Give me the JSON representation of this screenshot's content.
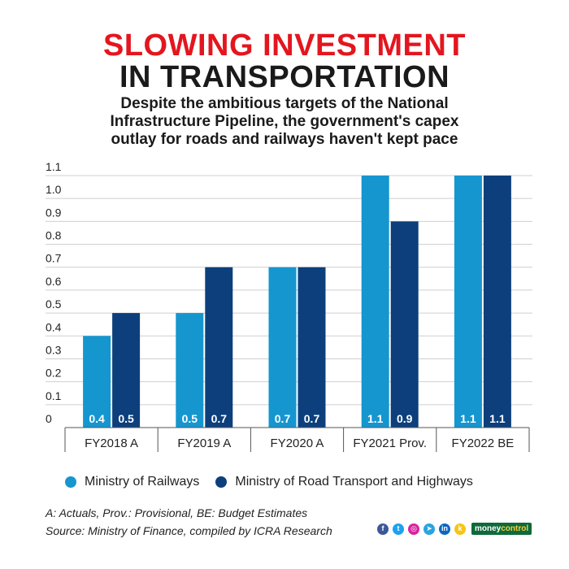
{
  "header": {
    "title_line1": "SLOWING INVESTMENT",
    "title_line2": "IN TRANSPORTATION",
    "subtitle_lines": [
      "Despite the ambitious targets of the National",
      "Infrastructure Pipeline, the government's capex",
      "outlay for roads and railways haven't kept pace"
    ]
  },
  "colors": {
    "title_red": "#e3161f",
    "title_black": "#1a1a1a",
    "railways": "#1596cf",
    "roads": "#0c3f7c",
    "grid": "#cfcfcf",
    "axis": "#555555"
  },
  "chart_data": {
    "type": "bar",
    "categories": [
      "FY2018 A",
      "FY2019 A",
      "FY2020 A",
      "FY2021 Prov.",
      "FY2022 BE"
    ],
    "series": [
      {
        "name": "Ministry of Railways",
        "values": [
          0.4,
          0.5,
          0.7,
          1.1,
          1.1
        ],
        "labels": [
          "0.4",
          "0.5",
          "0.7",
          "1.1",
          "1.1"
        ]
      },
      {
        "name": "Ministry of Road Transport and Highways",
        "values": [
          0.5,
          0.7,
          0.7,
          0.9,
          1.1
        ],
        "labels": [
          "0.5",
          "0.7",
          "0.7",
          "0.9",
          "1.1"
        ]
      }
    ],
    "ylim": [
      0,
      1.1
    ],
    "yticks": [
      0,
      0.1,
      0.2,
      0.3,
      0.4,
      0.5,
      0.6,
      0.7,
      0.8,
      0.9,
      1.0,
      1.1
    ],
    "ytick_labels": [
      "0",
      "0.1",
      "0.2",
      "0.3",
      "0.4",
      "0.5",
      "0.6",
      "0.7",
      "0.8",
      "0.9",
      "1.0",
      "1.1"
    ],
    "grid": true,
    "legend": "bottom"
  },
  "footnotes": {
    "line1": "A: Actuals, Prov.: Provisional, BE: Budget Estimates",
    "line2": "Source: Ministry of Finance, compiled by ICRA Research"
  },
  "social": {
    "icons": [
      "facebook-icon",
      "twitter-icon",
      "instagram-icon",
      "telegram-icon",
      "linkedin-icon",
      "koo-icon"
    ],
    "glyphs": [
      "f",
      "t",
      "◎",
      "➤",
      "in",
      "k"
    ],
    "colors": [
      "#3b5998",
      "#1da1f2",
      "#d6249f",
      "#2aa3e0",
      "#0a66c2",
      "#f5c518"
    ]
  },
  "brand": {
    "prefix": "money",
    "suffix": "control"
  }
}
